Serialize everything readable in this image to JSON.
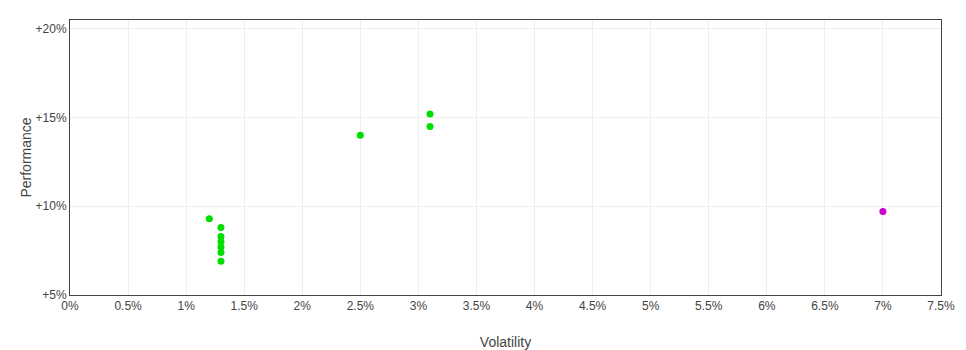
{
  "chart_data": {
    "type": "scatter",
    "xlabel": "Volatility",
    "ylabel": "Performance",
    "xlim": [
      0.0,
      0.075
    ],
    "ylim": [
      0.05,
      0.205
    ],
    "xticks": [
      {
        "value": 0.0,
        "label": "0%"
      },
      {
        "value": 0.005,
        "label": "0.5%"
      },
      {
        "value": 0.01,
        "label": "1%"
      },
      {
        "value": 0.015,
        "label": "1.5%"
      },
      {
        "value": 0.02,
        "label": "2%"
      },
      {
        "value": 0.025,
        "label": "2.5%"
      },
      {
        "value": 0.03,
        "label": "3%"
      },
      {
        "value": 0.035,
        "label": "3.5%"
      },
      {
        "value": 0.04,
        "label": "4%"
      },
      {
        "value": 0.045,
        "label": "4.5%"
      },
      {
        "value": 0.05,
        "label": "5%"
      },
      {
        "value": 0.055,
        "label": "5.5%"
      },
      {
        "value": 0.06,
        "label": "6%"
      },
      {
        "value": 0.065,
        "label": "6.5%"
      },
      {
        "value": 0.07,
        "label": "7%"
      },
      {
        "value": 0.075,
        "label": "7.5%"
      }
    ],
    "yticks": [
      {
        "value": 0.05,
        "label": "+5%"
      },
      {
        "value": 0.1,
        "label": "+10%"
      },
      {
        "value": 0.15,
        "label": "+15%"
      },
      {
        "value": 0.2,
        "label": "+20%"
      }
    ],
    "grid": true,
    "marker": "circle",
    "series": [
      {
        "color": "#00dd00",
        "x": [
          0.012,
          0.013,
          0.013,
          0.013,
          0.013,
          0.013,
          0.013,
          0.025,
          0.031,
          0.031
        ],
        "values": [
          0.093,
          0.088,
          0.083,
          0.08,
          0.077,
          0.074,
          0.069,
          0.14,
          0.152,
          0.145
        ]
      },
      {
        "color": "#cc00cc",
        "x": [
          0.07
        ],
        "values": [
          0.097
        ]
      }
    ]
  }
}
